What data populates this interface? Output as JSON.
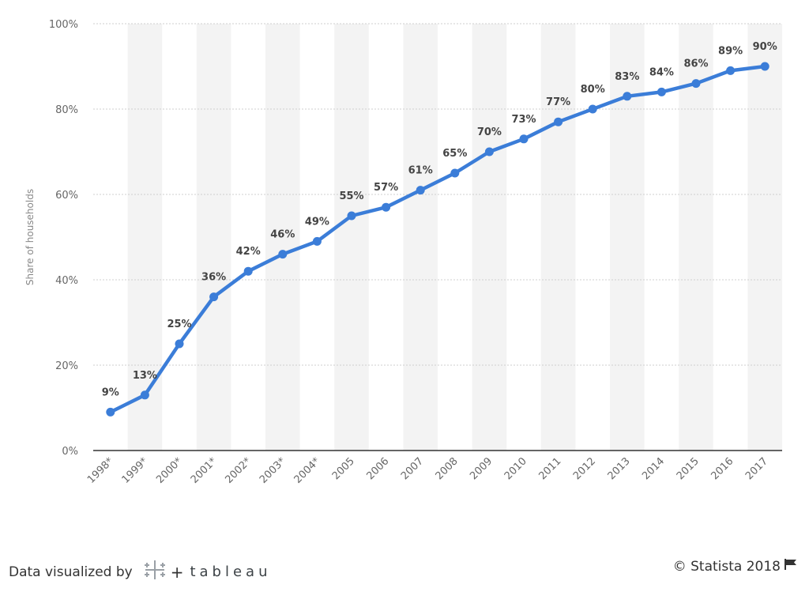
{
  "chart_data": {
    "type": "line",
    "title": "",
    "xlabel": "",
    "ylabel": "Share of households",
    "categories": [
      "1998*",
      "1999*",
      "2000*",
      "2001*",
      "2002*",
      "2003*",
      "2004*",
      "2005",
      "2006",
      "2007",
      "2008",
      "2009",
      "2010",
      "2011",
      "2012",
      "2013",
      "2014",
      "2015",
      "2016",
      "2017"
    ],
    "series": [
      {
        "values": [
          9,
          13,
          25,
          36,
          42,
          46,
          49,
          55,
          57,
          61,
          65,
          70,
          73,
          77,
          80,
          83,
          84,
          86,
          89,
          90
        ],
        "data_labels": [
          "9%",
          "13%",
          "25%",
          "36%",
          "42%",
          "46%",
          "49%",
          "55%",
          "57%",
          "61%",
          "65%",
          "70%",
          "73%",
          "77%",
          "80%",
          "83%",
          "84%",
          "86%",
          "89%",
          "90%"
        ],
        "color": "#3b7dd8"
      }
    ],
    "ylim": [
      0,
      100
    ],
    "yticks": [
      0,
      20,
      40,
      60,
      80,
      100
    ],
    "ytick_labels": [
      "0%",
      "20%",
      "40%",
      "60%",
      "80%",
      "100%"
    ],
    "grid": true,
    "legend": "none"
  },
  "footer": {
    "credit": "Data visualized by",
    "tableau_label": "tableau",
    "copyright": "© Statista 2018"
  },
  "colors": {
    "line": "#3b7dd8",
    "band": "#f3f3f3",
    "grid": "#cfcfcf",
    "axis_text": "#666666",
    "label_text": "#444444"
  }
}
